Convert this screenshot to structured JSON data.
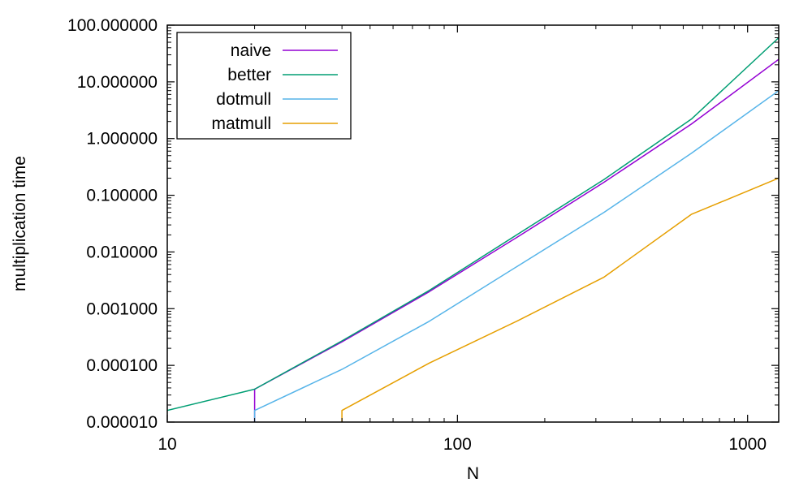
{
  "chart_data": {
    "type": "line",
    "xlabel": "N",
    "ylabel": "multiplication time",
    "x_scale": "log",
    "y_scale": "log",
    "xlim": [
      10,
      1280
    ],
    "ylim": [
      1e-05,
      100
    ],
    "x_ticks": [
      {
        "value": 10,
        "label": "10"
      },
      {
        "value": 100,
        "label": "100"
      },
      {
        "value": 1000,
        "label": "1000"
      }
    ],
    "y_ticks": [
      {
        "value": 1e-05,
        "label": "0.000010"
      },
      {
        "value": 0.0001,
        "label": "0.000100"
      },
      {
        "value": 0.001,
        "label": "0.001000"
      },
      {
        "value": 0.01,
        "label": "0.010000"
      },
      {
        "value": 0.1,
        "label": "0.100000"
      },
      {
        "value": 1,
        "label": "1.000000"
      },
      {
        "value": 10,
        "label": "10.000000"
      },
      {
        "value": 100,
        "label": "100.000000"
      }
    ],
    "grid": false,
    "legend_position": "top-left",
    "series": [
      {
        "name": "naive",
        "color": "#9400d3",
        "points": [
          [
            20,
            1e-05
          ],
          [
            20,
            3.8e-05
          ],
          [
            40,
            0.00026
          ],
          [
            80,
            0.002
          ],
          [
            160,
            0.018
          ],
          [
            320,
            0.17
          ],
          [
            640,
            1.8
          ],
          [
            1280,
            25
          ]
        ]
      },
      {
        "name": "better",
        "color": "#009e73",
        "points": [
          [
            10,
            1.6e-05
          ],
          [
            20,
            3.8e-05
          ],
          [
            40,
            0.00027
          ],
          [
            80,
            0.0021
          ],
          [
            160,
            0.02
          ],
          [
            320,
            0.19
          ],
          [
            640,
            2.2
          ],
          [
            1280,
            60
          ]
        ]
      },
      {
        "name": "dotmull",
        "color": "#56b4e9",
        "points": [
          [
            20,
            1e-05
          ],
          [
            20,
            1.6e-05
          ],
          [
            40,
            8.5e-05
          ],
          [
            80,
            0.0006
          ],
          [
            160,
            0.0055
          ],
          [
            320,
            0.05
          ],
          [
            640,
            0.55
          ],
          [
            1280,
            7
          ]
        ]
      },
      {
        "name": "matmull",
        "color": "#e69f00",
        "points": [
          [
            40,
            1e-05
          ],
          [
            40,
            1.6e-05
          ],
          [
            80,
            0.00011
          ],
          [
            160,
            0.0006
          ],
          [
            320,
            0.0036
          ],
          [
            640,
            0.046
          ],
          [
            1280,
            0.2
          ]
        ]
      }
    ]
  }
}
